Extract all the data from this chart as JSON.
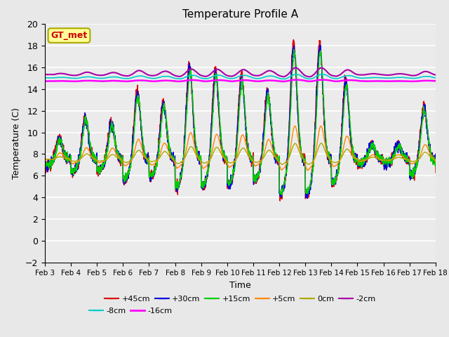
{
  "title": "Temperature Profile A",
  "xlabel": "Time",
  "ylabel": "Temperature (C)",
  "ylim": [
    -2,
    20
  ],
  "n_days": 16,
  "base_temp": 7.5,
  "series_labels": [
    "+45cm",
    "+30cm",
    "+15cm",
    "+5cm",
    "0cm",
    "-2cm",
    "-8cm",
    "-16cm"
  ],
  "series_colors": [
    "#dd0000",
    "#0000dd",
    "#00cc00",
    "#ff8800",
    "#aaaa00",
    "#aa00aa",
    "#00cccc",
    "#ff00ff"
  ],
  "xtick_labels": [
    "Feb 3",
    "Feb 4",
    "Feb 5",
    "Feb 6",
    "Feb 7",
    "Feb 8",
    "Feb 9",
    "Feb 10",
    "Feb 11",
    "Feb 12",
    "Feb 13",
    "Feb 14",
    "Feb 15",
    "Feb 16",
    "Feb 17",
    "Feb 18"
  ],
  "annotation_text": "GT_met",
  "annotation_color": "#cc0000",
  "annotation_bg": "#ffff99",
  "annotation_border": "#aaaa00",
  "bg_color": "#e8e8e8",
  "plot_bg": "#ebebeb",
  "grid_color": "#ffffff",
  "yticks": [
    -2,
    0,
    2,
    4,
    6,
    8,
    10,
    12,
    14,
    16,
    18,
    20
  ]
}
